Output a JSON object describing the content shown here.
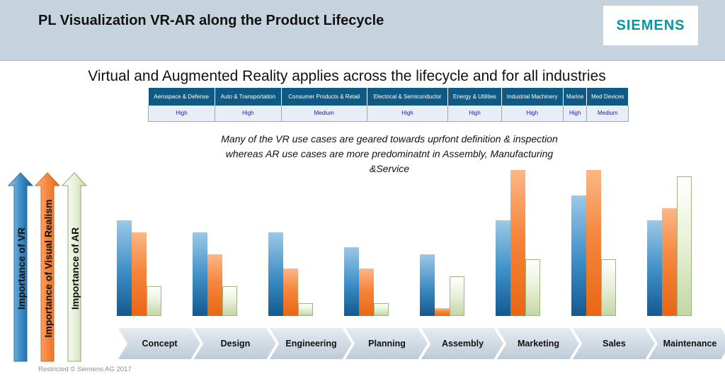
{
  "header": {
    "title": "PL Visualization VR-AR along the Product Lifecycle",
    "logo": "SIEMENS"
  },
  "subtitle": "Virtual and Augmented Reality applies across the lifecycle and for all industries",
  "industries": [
    {
      "name": "Aerospace & Defense",
      "rating": "High"
    },
    {
      "name": "Auto & Transportation",
      "rating": "High"
    },
    {
      "name": "Consumer Products & Retail",
      "rating": "Medium"
    },
    {
      "name": "Electrical & Semiconductor",
      "rating": "High"
    },
    {
      "name": "Energy & Utilities",
      "rating": "High"
    },
    {
      "name": "Industrial Machinery",
      "rating": "High"
    },
    {
      "name": "Marine",
      "rating": "High"
    },
    {
      "name": "Med Devices",
      "rating": "Medium"
    }
  ],
  "note": "Many of the VR use cases are geared towards uprfont definition & inspection whereas AR use cases are more predominatnt in Assembly, Manufacturing &Service",
  "axis_labels": {
    "vr": "Importance of VR",
    "visual": "Importance of Visual Realism",
    "ar": "Importance of AR"
  },
  "colors": {
    "header": "#c6d3de",
    "table_header": "#0f5a85",
    "siemens": "#0099a3"
  },
  "chart_data": {
    "type": "bar",
    "categories": [
      "Concept",
      "Design",
      "Engineering",
      "Planning",
      "Assembly",
      "Marketing",
      "Sales",
      "Maintenance"
    ],
    "series": [
      {
        "name": "Importance of VR",
        "values": [
          135,
          118,
          118,
          97,
          87,
          135,
          170,
          135
        ]
      },
      {
        "name": "Importance of Visual Realism",
        "values": [
          118,
          87,
          67,
          67,
          11,
          206,
          206,
          152
        ]
      },
      {
        "name": "Importance of AR",
        "values": [
          42,
          42,
          18,
          18,
          56,
          80,
          80,
          197
        ]
      }
    ],
    "title": "",
    "xlabel": "",
    "ylabel": "",
    "ylim": [
      0,
      210
    ]
  },
  "footer": "Restricted © Siemens AG 2017"
}
